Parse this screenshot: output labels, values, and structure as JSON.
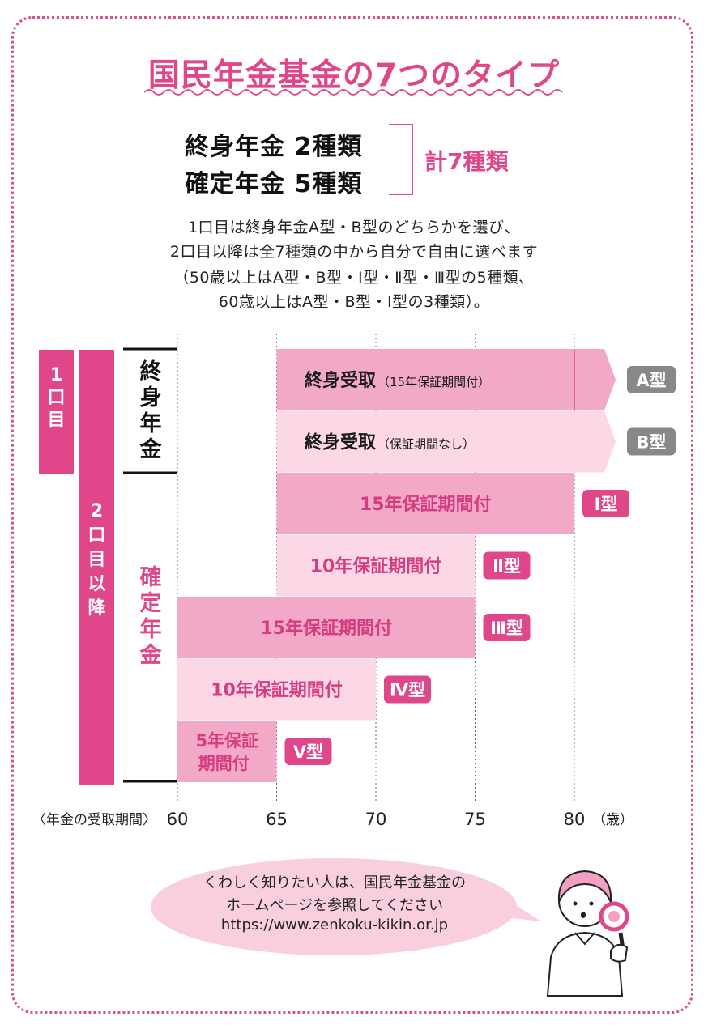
{
  "title": "国民年金基金の7つのタイプ",
  "summary": {
    "line1": "終身年金 2種類",
    "line2": "確定年金 5種類",
    "total": "計7種類"
  },
  "description": [
    "1口目は終身年金A型・B型のどちらかを選び、",
    "2口目以降は全7種類の中から自分で自由に選べます",
    "（50歳以上はA型・B型・Ⅰ型・Ⅱ型・Ⅲ型の5種類、",
    "60歳以上はA型・B型・Ⅰ型の3種類）。"
  ],
  "chart_data": {
    "type": "bar",
    "orientation": "horizontal",
    "xlabel": "〈年金の受取期間〉",
    "x_ticks": [
      60,
      65,
      70,
      75,
      80
    ],
    "x_unit": "（歳）",
    "xlim": [
      60,
      80
    ],
    "left_labels": {
      "first_unit": "1口目",
      "second_unit": "2口目以降",
      "lifetime_group": "終身年金",
      "fixed_group": "確定年金"
    },
    "bars": [
      {
        "label_main": "終身受取",
        "label_sub": "（15年保証期間付）",
        "start": 65,
        "end": null,
        "marker": 80,
        "type": "A型",
        "color": "#f2a9c8",
        "badge_color": "#888888",
        "text_color": "#1a1a1a"
      },
      {
        "label_main": "終身受取",
        "label_sub": "（保証期間なし）",
        "start": 65,
        "end": null,
        "type": "B型",
        "color": "#fcd8e6",
        "badge_color": "#888888",
        "text_color": "#1a1a1a"
      },
      {
        "label_main": "15年保証期間付",
        "start": 65,
        "end": 80,
        "type": "Ⅰ型",
        "color": "#f2a9c8",
        "badge_color": "#e0478a",
        "text_color": "#d63c80"
      },
      {
        "label_main": "10年保証期間付",
        "start": 65,
        "end": 75,
        "type": "Ⅱ型",
        "color": "#fcd8e6",
        "badge_color": "#e0478a",
        "text_color": "#d63c80"
      },
      {
        "label_main": "15年保証期間付",
        "start": 60,
        "end": 75,
        "type": "Ⅲ型",
        "color": "#f2a9c8",
        "badge_color": "#e0478a",
        "text_color": "#d63c80"
      },
      {
        "label_main": "10年保証期間付",
        "start": 60,
        "end": 70,
        "type": "Ⅳ型",
        "color": "#fcd8e6",
        "badge_color": "#e0478a",
        "text_color": "#d63c80"
      },
      {
        "label_main": "5年保証",
        "label_main2": "期間付",
        "start": 60,
        "end": 65,
        "type": "Ⅴ型",
        "color": "#f2a9c8",
        "badge_color": "#e0478a",
        "text_color": "#d63c80"
      }
    ]
  },
  "bubble": {
    "line1": "くわしく知りたい人は、国民年金基金の",
    "line2": "ホームページを参照してください",
    "url": "https://www.zenkoku-kikin.or.jp"
  },
  "colors": {
    "accent": "#e0478a",
    "bar_dark": "#f2a9c8",
    "bar_light": "#fcd8e6",
    "bubble": "#f9cfe0"
  }
}
